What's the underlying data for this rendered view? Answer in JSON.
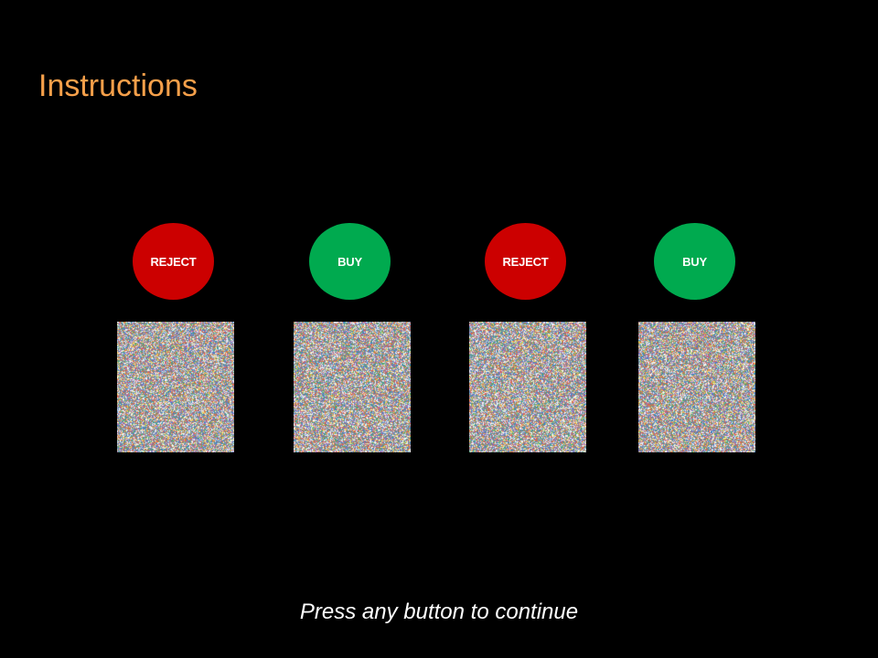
{
  "screen": {
    "title": "Instructions",
    "prompt": "Press any button to continue"
  },
  "options": [
    {
      "label": "REJECT",
      "kind": "reject",
      "color": "#cc0000"
    },
    {
      "label": "BUY",
      "kind": "buy",
      "color": "#00aa4f"
    },
    {
      "label": "REJECT",
      "kind": "reject",
      "color": "#cc0000"
    },
    {
      "label": "BUY",
      "kind": "buy",
      "color": "#00aa4f"
    }
  ],
  "colors": {
    "background": "#000000",
    "title": "#f6a04a",
    "prompt": "#ffffff"
  }
}
